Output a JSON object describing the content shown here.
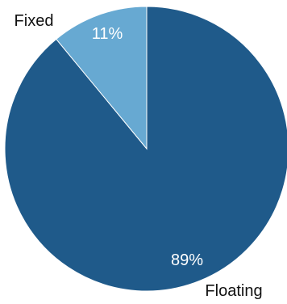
{
  "chart_data": {
    "type": "pie",
    "slices": [
      {
        "label": "Floating",
        "value": 89,
        "data_label": "89%",
        "color": "#1f5a8a"
      },
      {
        "label": "Fixed",
        "value": 11,
        "data_label": "11%",
        "color": "#67a9d2"
      }
    ],
    "start": "12 o'clock",
    "direction": "clockwise",
    "slice_border_color": "#ffffff"
  }
}
